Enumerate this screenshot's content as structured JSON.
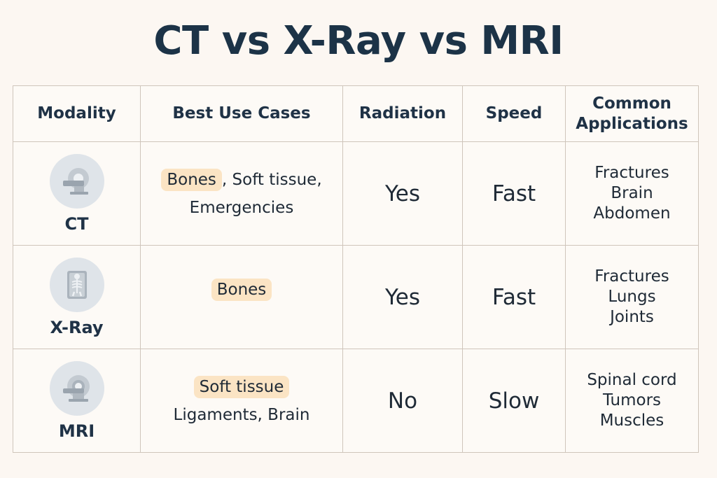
{
  "title": "CT vs X-Ray vs MRI",
  "headers": {
    "modality": "Modality",
    "use_cases": "Best Use Cases",
    "radiation": "Radiation",
    "speed": "Speed",
    "applications": "Common Applications"
  },
  "rows": [
    {
      "modality": "CT",
      "icon": "ct-scanner-icon",
      "use_highlight": "Bones",
      "use_rest": ", Soft tissue,",
      "use_line2": "Emergencies",
      "radiation": "Yes",
      "speed": "Fast",
      "applications": [
        "Fractures",
        "Brain",
        "Abdomen"
      ]
    },
    {
      "modality": "X-Ray",
      "icon": "xray-skeleton-icon",
      "use_highlight": "Bones",
      "use_rest": "",
      "use_line2": "",
      "radiation": "Yes",
      "speed": "Fast",
      "applications": [
        "Fractures",
        "Lungs",
        "Joints"
      ]
    },
    {
      "modality": "MRI",
      "icon": "mri-scanner-icon",
      "use_highlight": "Soft tissue",
      "use_rest": "",
      "use_line2": "Ligaments,  Brain",
      "radiation": "No",
      "speed": "Slow",
      "applications": [
        "Spinal cord",
        "Tumors",
        "Muscles"
      ]
    }
  ],
  "colors": {
    "background": "#fcf7f2",
    "title": "#1c3347",
    "highlight": "#fbe4c4",
    "icon_circle": "#dfe4e9",
    "grid": "#cfc5bb"
  }
}
